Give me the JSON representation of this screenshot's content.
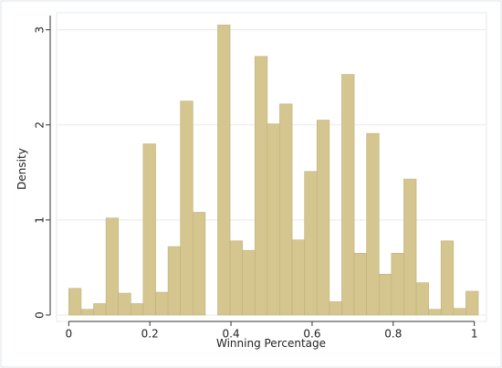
{
  "chart_data": {
    "type": "histogram",
    "x_label": "Winning Percentage",
    "y_label": "Density",
    "bins": [
      0,
      0.0306,
      0.0612,
      0.0918,
      0.1224,
      0.153,
      0.1836,
      0.2142,
      0.2448,
      0.2754,
      0.306,
      0.3366,
      0.3672,
      0.3978,
      0.4284,
      0.459,
      0.4896,
      0.5202,
      0.5508,
      0.5814,
      0.612,
      0.6426,
      0.6732,
      0.7038,
      0.7344,
      0.765,
      0.7956,
      0.8262,
      0.8568,
      0.8874,
      0.918,
      0.9486,
      0.9792,
      1.0098
    ],
    "values": [
      0.28,
      0.06,
      0.12,
      1.02,
      0.23,
      0.12,
      1.8,
      0.24,
      0.72,
      2.25,
      1.08,
      0,
      3.05,
      0.78,
      0.68,
      2.72,
      2.01,
      2.22,
      0.79,
      1.51,
      2.05,
      0.14,
      2.53,
      0.65,
      1.91,
      0.43,
      0.65,
      1.43,
      0.34,
      0.06,
      0.78,
      0.07,
      0.25
    ],
    "color": "#d4c68e",
    "xlim": [
      -0.03,
      1.03
    ],
    "ylim": [
      0,
      3.15
    ],
    "xticks": [
      0,
      0.2,
      0.4,
      0.6,
      0.8,
      1
    ],
    "yticks": [
      0,
      1,
      2,
      3
    ],
    "grid": true
  }
}
